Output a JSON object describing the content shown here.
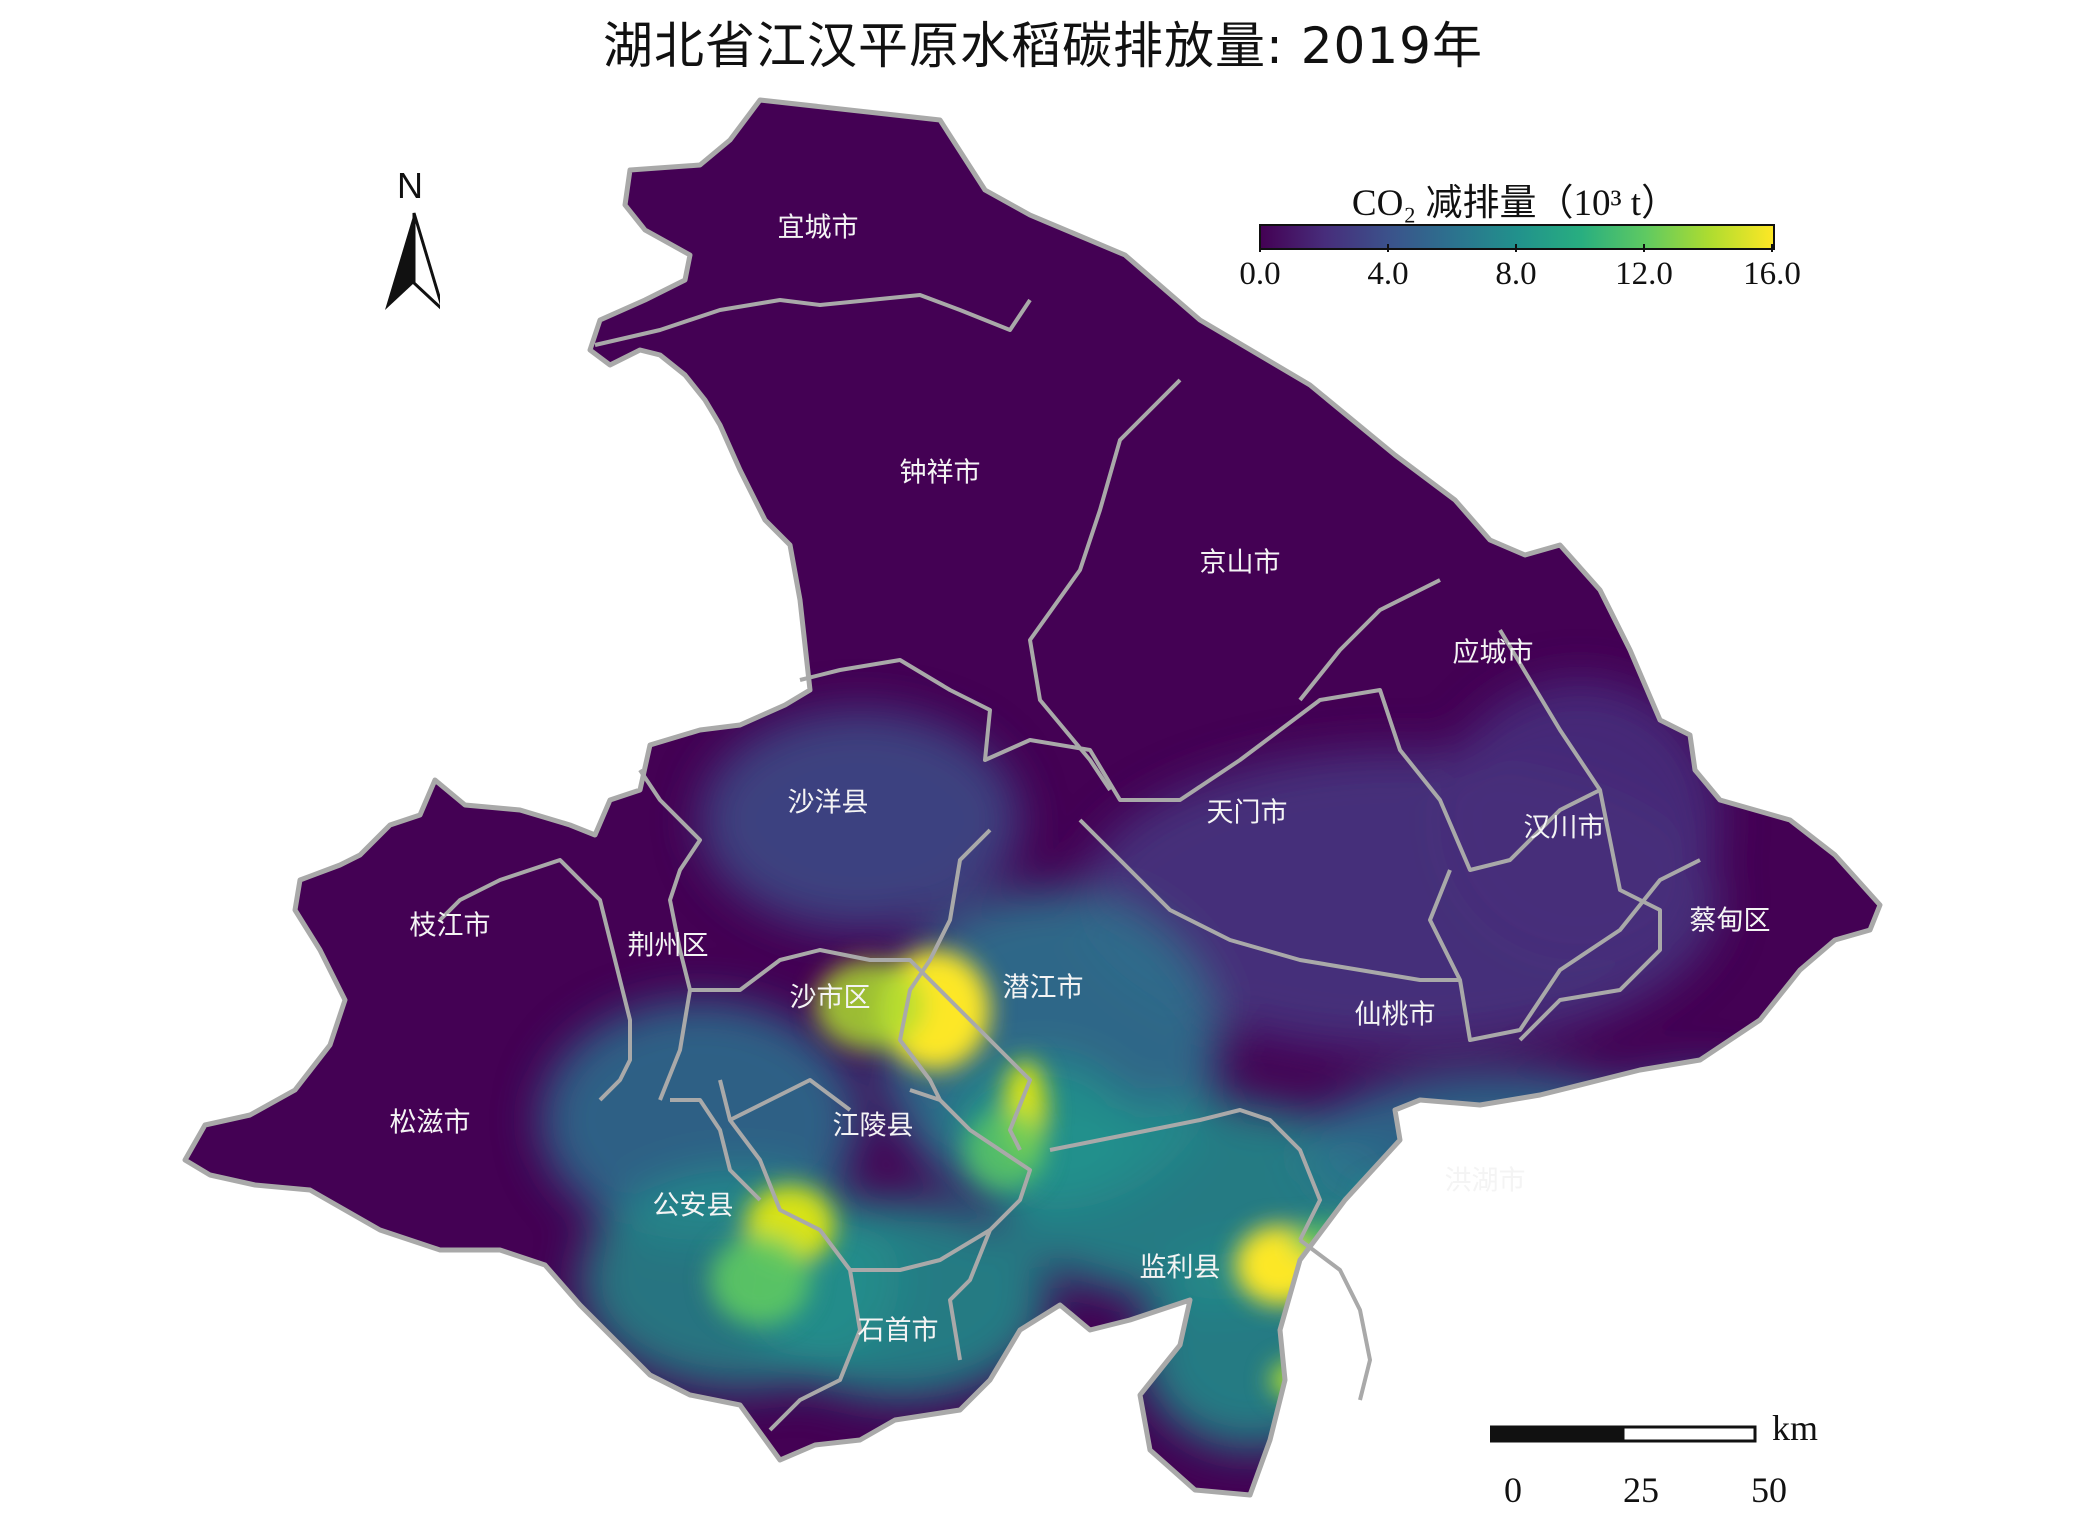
{
  "title": "湖北省江汉平原水稻碳排放量: 2019年",
  "legend": {
    "title": "CO₂ 减排量（10³ t）",
    "ticks": [
      "0.0",
      "4.0",
      "8.0",
      "12.0",
      "16.0"
    ],
    "range": [
      0,
      16
    ],
    "colormap": [
      "#440154",
      "#472d7b",
      "#3b528b",
      "#2c728e",
      "#21918c",
      "#28ae80",
      "#5ec962",
      "#addc30",
      "#fde725"
    ]
  },
  "north_arrow": {
    "letter": "N"
  },
  "scale_bar": {
    "unit": "km",
    "labels": [
      "0",
      "25",
      "50"
    ]
  },
  "regions": [
    {
      "name": "宜城市"
    },
    {
      "name": "钟祥市"
    },
    {
      "name": "京山市"
    },
    {
      "name": "应城市"
    },
    {
      "name": "沙洋县"
    },
    {
      "name": "天门市"
    },
    {
      "name": "汉川市"
    },
    {
      "name": "枝江市"
    },
    {
      "name": "荆州区"
    },
    {
      "name": "沙市区"
    },
    {
      "name": "潜江市"
    },
    {
      "name": "蔡甸区"
    },
    {
      "name": "仙桃市"
    },
    {
      "name": "松滋市"
    },
    {
      "name": "江陵县"
    },
    {
      "name": "洪湖市"
    },
    {
      "name": "公安县"
    },
    {
      "name": "监利县"
    },
    {
      "name": "石首市"
    }
  ],
  "colors": {
    "background_region": "#440154",
    "boundary": "#a9a9a9",
    "label": "#f4f4f4"
  }
}
